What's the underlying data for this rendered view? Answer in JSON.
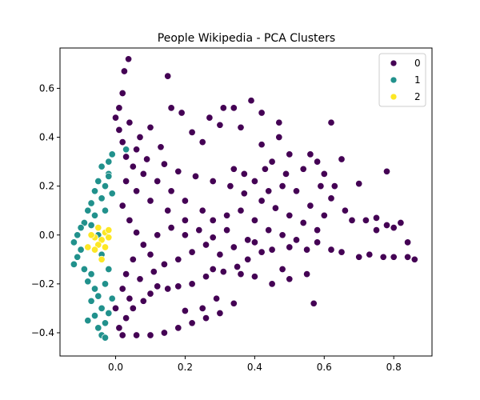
{
  "chart_data": {
    "type": "scatter",
    "title": "People Wikipedia - PCA Clusters",
    "xlabel": "",
    "ylabel": "",
    "xlim": [
      -0.16,
      0.91
    ],
    "ylim": [
      -0.495,
      0.765
    ],
    "xticks": [
      0.0,
      0.2,
      0.4,
      0.6,
      0.8
    ],
    "xtick_labels": [
      "0.0",
      "0.2",
      "0.4",
      "0.6",
      "0.8"
    ],
    "yticks": [
      -0.4,
      -0.2,
      0.0,
      0.2,
      0.4,
      0.6
    ],
    "ytick_labels": [
      "−0.4",
      "−0.2",
      "0.0",
      "0.2",
      "0.4",
      "0.6"
    ],
    "grid": false,
    "legend": {
      "placement": "top-right",
      "entries": [
        {
          "label": "0",
          "color": "#440154"
        },
        {
          "label": "1",
          "color": "#21918c"
        },
        {
          "label": "2",
          "color": "#fde725"
        }
      ]
    },
    "series": [
      {
        "cluster": "0",
        "color": "#440154",
        "points": [
          [
            0.037,
            0.72
          ],
          [
            0.025,
            0.67
          ],
          [
            0.15,
            0.65
          ],
          [
            0.02,
            0.58
          ],
          [
            0.01,
            0.52
          ],
          [
            0.0,
            0.48
          ],
          [
            0.16,
            0.52
          ],
          [
            0.19,
            0.5
          ],
          [
            0.27,
            0.48
          ],
          [
            0.31,
            0.52
          ],
          [
            0.34,
            0.52
          ],
          [
            0.39,
            0.55
          ],
          [
            0.42,
            0.5
          ],
          [
            0.47,
            0.46
          ],
          [
            0.47,
            0.4
          ],
          [
            0.62,
            0.46
          ],
          [
            0.3,
            0.45
          ],
          [
            0.36,
            0.44
          ],
          [
            0.22,
            0.42
          ],
          [
            0.25,
            0.38
          ],
          [
            0.1,
            0.44
          ],
          [
            0.07,
            0.4
          ],
          [
            0.13,
            0.36
          ],
          [
            0.42,
            0.37
          ],
          [
            0.45,
            0.3
          ],
          [
            0.56,
            0.33
          ],
          [
            0.58,
            0.3
          ],
          [
            0.65,
            0.31
          ],
          [
            0.5,
            0.33
          ],
          [
            0.54,
            0.27
          ],
          [
            0.49,
            0.25
          ],
          [
            0.6,
            0.25
          ],
          [
            0.59,
            0.2
          ],
          [
            0.63,
            0.2
          ],
          [
            0.7,
            0.21
          ],
          [
            0.78,
            0.26
          ],
          [
            0.43,
            0.27
          ],
          [
            0.4,
            0.22
          ],
          [
            0.37,
            0.25
          ],
          [
            0.34,
            0.27
          ],
          [
            0.52,
            0.18
          ],
          [
            0.62,
            0.15
          ],
          [
            0.66,
            0.1
          ],
          [
            0.68,
            0.06
          ],
          [
            0.72,
            0.06
          ],
          [
            0.75,
            0.07
          ],
          [
            0.75,
            0.02
          ],
          [
            0.78,
            0.04
          ],
          [
            0.8,
            0.03
          ],
          [
            0.82,
            0.05
          ],
          [
            0.84,
            -0.03
          ],
          [
            0.86,
            -0.1
          ],
          [
            0.84,
            -0.09
          ],
          [
            0.8,
            -0.09
          ],
          [
            0.77,
            -0.09
          ],
          [
            0.73,
            -0.08
          ],
          [
            0.7,
            -0.09
          ],
          [
            0.65,
            -0.07
          ],
          [
            0.62,
            -0.06
          ],
          [
            0.58,
            -0.03
          ],
          [
            0.55,
            -0.06
          ],
          [
            0.5,
            -0.05
          ],
          [
            0.45,
            -0.06
          ],
          [
            0.42,
            -0.07
          ],
          [
            0.38,
            -0.1
          ],
          [
            0.35,
            -0.13
          ],
          [
            0.31,
            -0.15
          ],
          [
            0.28,
            -0.14
          ],
          [
            0.26,
            -0.17
          ],
          [
            0.22,
            -0.2
          ],
          [
            0.18,
            -0.21
          ],
          [
            0.15,
            -0.22
          ],
          [
            0.12,
            -0.21
          ],
          [
            0.1,
            -0.24
          ],
          [
            0.08,
            -0.27
          ],
          [
            0.05,
            -0.3
          ],
          [
            0.03,
            -0.34
          ],
          [
            0.01,
            -0.38
          ],
          [
            0.02,
            -0.41
          ],
          [
            0.06,
            -0.41
          ],
          [
            0.1,
            -0.41
          ],
          [
            0.14,
            -0.4
          ],
          [
            0.18,
            -0.38
          ],
          [
            0.22,
            -0.36
          ],
          [
            0.26,
            -0.34
          ],
          [
            0.3,
            -0.32
          ],
          [
            0.34,
            -0.28
          ],
          [
            0.29,
            -0.26
          ],
          [
            0.25,
            -0.3
          ],
          [
            0.2,
            -0.31
          ],
          [
            0.45,
            -0.2
          ],
          [
            0.5,
            -0.18
          ],
          [
            0.57,
            -0.28
          ],
          [
            0.55,
            -0.16
          ],
          [
            0.48,
            -0.14
          ],
          [
            0.4,
            -0.17
          ],
          [
            0.36,
            -0.16
          ],
          [
            0.38,
            -0.02
          ],
          [
            0.32,
            0.02
          ],
          [
            0.28,
            0.06
          ],
          [
            0.25,
            0.1
          ],
          [
            0.2,
            0.14
          ],
          [
            0.16,
            0.18
          ],
          [
            0.12,
            0.22
          ],
          [
            0.08,
            0.25
          ],
          [
            0.05,
            0.28
          ],
          [
            0.03,
            0.32
          ],
          [
            0.02,
            0.38
          ],
          [
            0.01,
            0.43
          ],
          [
            0.04,
            0.46
          ],
          [
            0.06,
            0.35
          ],
          [
            0.09,
            0.31
          ],
          [
            0.14,
            0.29
          ],
          [
            0.18,
            0.26
          ],
          [
            0.23,
            0.24
          ],
          [
            0.28,
            0.22
          ],
          [
            0.33,
            0.2
          ],
          [
            0.37,
            0.17
          ],
          [
            0.42,
            0.14
          ],
          [
            0.46,
            0.11
          ],
          [
            0.5,
            0.08
          ],
          [
            0.54,
            0.05
          ],
          [
            0.58,
            0.02
          ],
          [
            0.6,
            0.08
          ],
          [
            0.56,
            0.12
          ],
          [
            0.48,
            0.2
          ],
          [
            0.44,
            0.18
          ],
          [
            0.2,
            0.06
          ],
          [
            0.15,
            0.1
          ],
          [
            0.1,
            0.14
          ],
          [
            0.06,
            0.18
          ],
          [
            0.03,
            0.22
          ],
          [
            0.02,
            0.12
          ],
          [
            0.04,
            0.06
          ],
          [
            0.06,
            0.01
          ],
          [
            0.08,
            -0.04
          ],
          [
            0.1,
            -0.08
          ],
          [
            0.14,
            -0.12
          ],
          [
            0.18,
            -0.1
          ],
          [
            0.22,
            -0.07
          ],
          [
            0.26,
            -0.04
          ],
          [
            0.3,
            -0.08
          ],
          [
            0.34,
            -0.05
          ],
          [
            0.4,
            -0.03
          ],
          [
            0.44,
            0.02
          ],
          [
            0.48,
            0.0
          ],
          [
            0.52,
            -0.02
          ],
          [
            0.12,
            0.0
          ],
          [
            0.16,
            0.03
          ],
          [
            0.2,
            0.0
          ],
          [
            0.24,
            0.02
          ],
          [
            0.28,
            -0.01
          ],
          [
            0.32,
            0.08
          ],
          [
            0.36,
            0.1
          ],
          [
            0.4,
            0.06
          ],
          [
            0.05,
            -0.1
          ],
          [
            0.03,
            -0.16
          ],
          [
            0.07,
            -0.18
          ],
          [
            0.11,
            -0.15
          ],
          [
            0.02,
            -0.22
          ],
          [
            0.04,
            -0.26
          ],
          [
            0.0,
            -0.3
          ]
        ]
      },
      {
        "cluster": "1",
        "color": "#21918c",
        "points": [
          [
            0.03,
            0.35
          ],
          [
            -0.01,
            0.33
          ],
          [
            -0.02,
            0.3
          ],
          [
            -0.04,
            0.28
          ],
          [
            -0.02,
            0.25
          ],
          [
            -0.05,
            0.22
          ],
          [
            -0.03,
            0.2
          ],
          [
            -0.06,
            0.18
          ],
          [
            -0.04,
            0.15
          ],
          [
            -0.07,
            0.13
          ],
          [
            -0.08,
            0.1
          ],
          [
            -0.06,
            0.08
          ],
          [
            -0.09,
            0.05
          ],
          [
            -0.1,
            0.03
          ],
          [
            -0.11,
            0.0
          ],
          [
            -0.12,
            -0.03
          ],
          [
            -0.1,
            -0.06
          ],
          [
            -0.11,
            -0.09
          ],
          [
            -0.12,
            -0.12
          ],
          [
            -0.09,
            -0.14
          ],
          [
            -0.07,
            -0.16
          ],
          [
            -0.08,
            -0.19
          ],
          [
            -0.06,
            -0.22
          ],
          [
            -0.05,
            -0.25
          ],
          [
            -0.07,
            -0.27
          ],
          [
            -0.04,
            -0.3
          ],
          [
            -0.06,
            -0.33
          ],
          [
            -0.03,
            -0.36
          ],
          [
            -0.05,
            -0.38
          ],
          [
            -0.04,
            -0.41
          ],
          [
            -0.03,
            -0.42
          ],
          [
            -0.08,
            -0.35
          ],
          [
            -0.02,
            -0.32
          ],
          [
            -0.01,
            -0.26
          ],
          [
            -0.03,
            -0.2
          ],
          [
            -0.02,
            -0.14
          ],
          [
            -0.04,
            -0.08
          ],
          [
            -0.05,
            0.0
          ],
          [
            -0.07,
            0.04
          ],
          [
            -0.03,
            0.1
          ],
          [
            -0.01,
            0.17
          ],
          [
            -0.02,
            0.24
          ]
        ]
      },
      {
        "cluster": "2",
        "color": "#fde725",
        "points": [
          [
            -0.05,
            0.03
          ],
          [
            -0.03,
            0.01
          ],
          [
            -0.06,
            -0.01
          ],
          [
            -0.04,
            -0.02
          ],
          [
            -0.02,
            0.02
          ],
          [
            -0.07,
            0.0
          ],
          [
            -0.05,
            -0.04
          ],
          [
            -0.03,
            -0.05
          ],
          [
            -0.06,
            -0.06
          ],
          [
            -0.04,
            -0.1
          ],
          [
            -0.08,
            -0.05
          ],
          [
            -0.02,
            -0.01
          ]
        ]
      }
    ]
  }
}
